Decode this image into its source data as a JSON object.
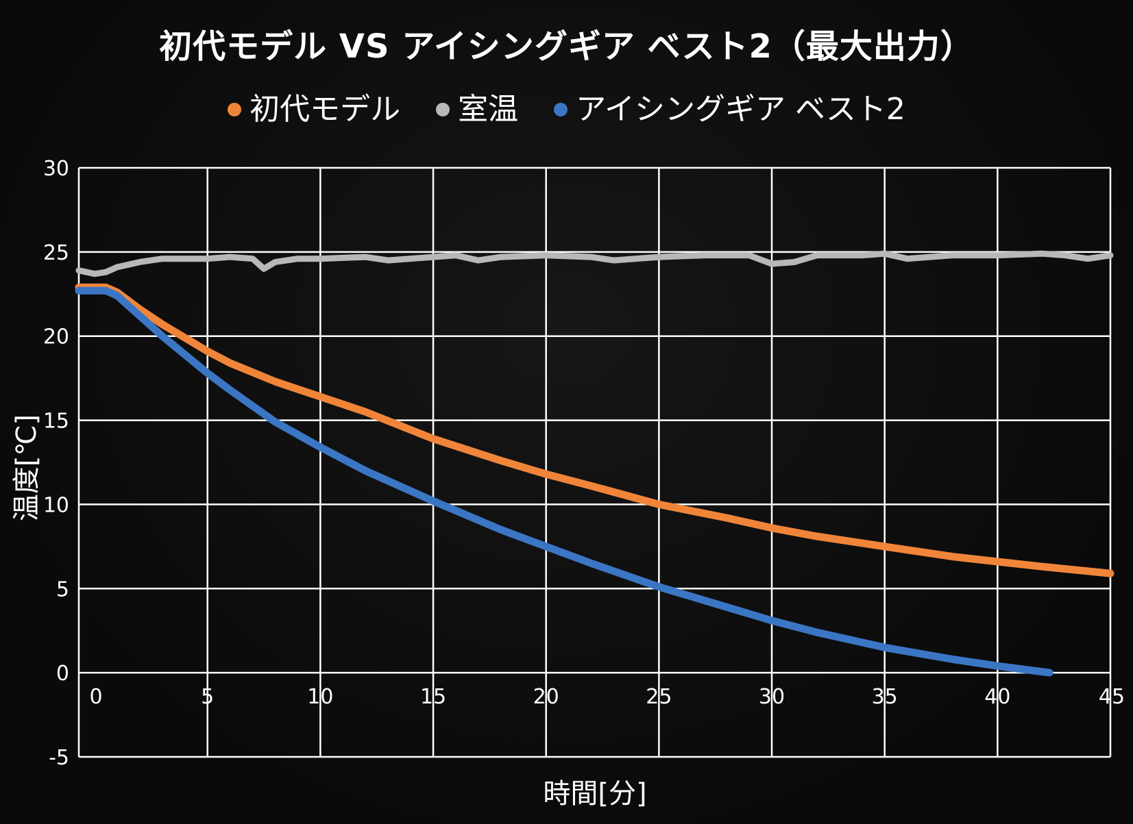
{
  "chart_data": {
    "type": "line",
    "title": "初代モデル VS アイシングギア ベスト2（最大出力）",
    "xlabel": "時間[分]",
    "ylabel": "温度[℃]",
    "xlim": [
      -0.7,
      45
    ],
    "ylim": [
      -5,
      30
    ],
    "x_ticks": [
      "0",
      "5",
      "10",
      "15",
      "20",
      "25",
      "30",
      "35",
      "40",
      "45"
    ],
    "y_ticks": [
      "30",
      "25",
      "20",
      "15",
      "10",
      "5",
      "0",
      "-5"
    ],
    "grid": true,
    "legend_position": "top-center",
    "series": [
      {
        "name": "初代モデル",
        "color": "#f0853a",
        "x": [
          -0.7,
          0,
          0.5,
          1,
          2,
          3,
          4,
          5,
          6,
          8,
          10,
          12,
          15,
          18,
          20,
          22,
          25,
          28,
          30,
          32,
          35,
          38,
          40,
          42,
          45
        ],
        "y": [
          22.9,
          22.9,
          22.9,
          22.6,
          21.6,
          20.7,
          19.9,
          19.1,
          18.4,
          17.3,
          16.4,
          15.5,
          13.9,
          12.6,
          11.8,
          11.1,
          10.0,
          9.2,
          8.6,
          8.1,
          7.5,
          6.9,
          6.6,
          6.3,
          5.9
        ]
      },
      {
        "name": "室温",
        "color": "#b8b8b8",
        "x": [
          -0.7,
          0,
          0.5,
          1,
          2,
          3,
          4,
          5,
          6,
          7,
          7.5,
          8,
          9,
          10,
          12,
          13,
          15,
          16,
          17,
          18,
          20,
          22,
          23,
          25,
          27,
          29,
          30,
          31,
          32,
          34,
          35,
          36,
          38,
          40,
          42,
          43,
          44,
          45
        ],
        "y": [
          23.9,
          23.7,
          23.8,
          24.1,
          24.4,
          24.6,
          24.6,
          24.6,
          24.7,
          24.6,
          24.0,
          24.4,
          24.6,
          24.6,
          24.7,
          24.5,
          24.7,
          24.8,
          24.5,
          24.7,
          24.8,
          24.7,
          24.5,
          24.7,
          24.8,
          24.8,
          24.3,
          24.4,
          24.8,
          24.8,
          24.9,
          24.6,
          24.8,
          24.8,
          24.9,
          24.8,
          24.6,
          24.8
        ]
      },
      {
        "name": "アイシングギア ベスト2",
        "color": "#3b76c4",
        "x": [
          -0.7,
          0,
          0.5,
          1,
          2,
          3,
          4,
          5,
          6,
          8,
          10,
          12,
          15,
          18,
          20,
          22,
          25,
          28,
          30,
          32,
          35,
          38,
          40,
          42.3
        ],
        "y": [
          22.7,
          22.7,
          22.7,
          22.4,
          21.2,
          20.0,
          18.9,
          17.8,
          16.8,
          14.9,
          13.4,
          12.0,
          10.2,
          8.5,
          7.5,
          6.5,
          5.1,
          3.9,
          3.1,
          2.4,
          1.5,
          0.8,
          0.4,
          0.0
        ]
      }
    ]
  }
}
